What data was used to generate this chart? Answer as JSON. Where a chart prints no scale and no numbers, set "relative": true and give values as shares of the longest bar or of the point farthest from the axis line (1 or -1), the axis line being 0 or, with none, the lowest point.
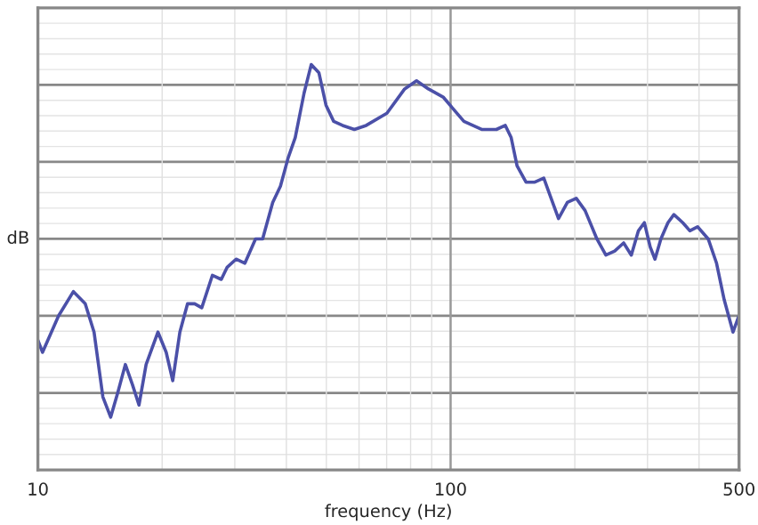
{
  "chart_data": {
    "type": "line",
    "xlabel": "frequency (Hz)",
    "ylabel": "dB",
    "log": "x",
    "relative": true,
    "grid": true,
    "line_style": "solid",
    "marker": "none",
    "xlim": [
      10,
      500
    ],
    "xticks": [
      10,
      100,
      500
    ],
    "x": [
      10.0,
      10.26,
      11.22,
      12.19,
      13.02,
      13.68,
      14.37,
      15.01,
      15.61,
      16.29,
      16.95,
      17.58,
      18.29,
      19.54,
      20.46,
      21.22,
      22.08,
      23.05,
      23.98,
      24.95,
      26.47,
      27.82,
      28.75,
      30.21,
      31.74,
      33.68,
      35.04,
      37.07,
      38.7,
      40.4,
      42.03,
      44.16,
      45.95,
      47.96,
      49.9,
      52.08,
      54.72,
      58.46,
      62.46,
      70.1,
      77.4,
      82.69,
      88.35,
      95.92,
      107.7,
      118.9,
      129.1,
      135.7,
      140.2,
      144.9,
      152.3,
      160.0,
      168.2,
      173.8,
      182.6,
      191.9,
      201.6,
      211.8,
      226.2,
      237.8,
      249.9,
      262.6,
      274.1,
      285.2,
      294.8,
      304.6,
      312.8,
      323.3,
      336.3,
      347.6,
      365.2,
      380.0,
      396.7,
      420.9,
      441.0,
      460.2,
      483.5,
      499.7
    ],
    "series": [
      {
        "color": "#4b50a8",
        "values": [
          0.32,
          0.29,
          0.38,
          0.44,
          0.41,
          0.34,
          0.18,
          0.13,
          0.19,
          0.26,
          0.21,
          0.16,
          0.26,
          0.34,
          0.29,
          0.22,
          0.34,
          0.41,
          0.41,
          0.4,
          0.48,
          0.47,
          0.5,
          0.52,
          0.51,
          0.57,
          0.57,
          0.66,
          0.7,
          0.77,
          0.82,
          0.93,
          1.0,
          0.98,
          0.9,
          0.86,
          0.85,
          0.84,
          0.85,
          0.88,
          0.94,
          0.96,
          0.94,
          0.92,
          0.86,
          0.84,
          0.84,
          0.85,
          0.82,
          0.75,
          0.71,
          0.71,
          0.72,
          0.68,
          0.62,
          0.66,
          0.67,
          0.64,
          0.57,
          0.53,
          0.54,
          0.56,
          0.53,
          0.59,
          0.61,
          0.55,
          0.52,
          0.57,
          0.61,
          0.63,
          0.61,
          0.59,
          0.6,
          0.57,
          0.51,
          0.42,
          0.34,
          0.38
        ]
      }
    ]
  }
}
